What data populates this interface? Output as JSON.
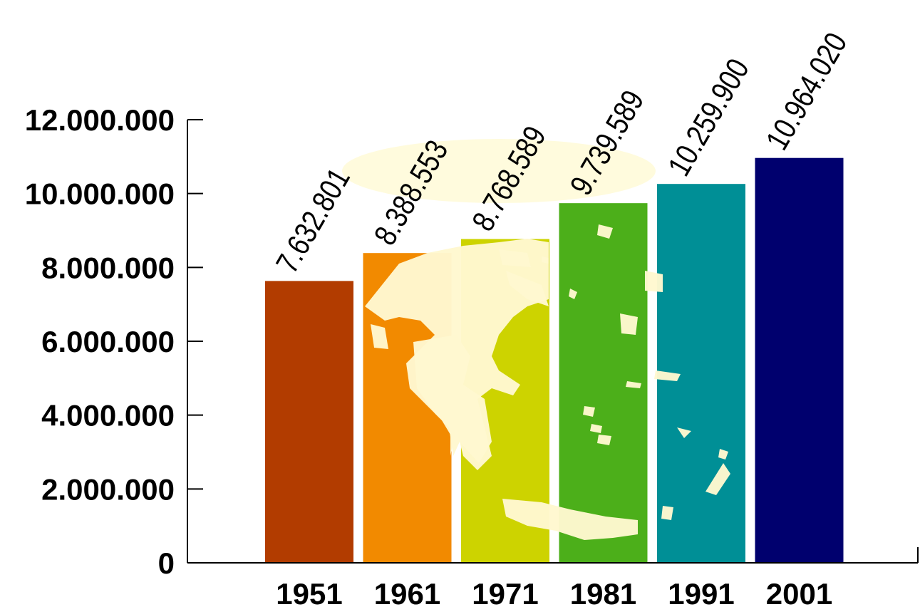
{
  "chart_data": {
    "type": "bar",
    "categories": [
      "1951",
      "1961",
      "1971",
      "1981",
      "1991",
      "2001"
    ],
    "values": [
      7632801,
      8388553,
      8768589,
      9739589,
      10259900,
      10964020
    ],
    "data_labels": [
      "7.632.801",
      "8.388.553",
      "8.768.589",
      "9.739.589",
      "10.259.900",
      "10.964.020"
    ],
    "colors": [
      "#b23c00",
      "#f28a00",
      "#cdd300",
      "#4caf1a",
      "#008f96",
      "#00006e"
    ],
    "ylim": [
      0,
      12000000
    ],
    "yticks": [
      0,
      2000000,
      4000000,
      6000000,
      8000000,
      10000000,
      12000000
    ],
    "ytick_labels": [
      "0",
      "2.000.000",
      "4.000.000",
      "6.000.000",
      "8.000.000",
      "10.000.000",
      "12.000.000"
    ],
    "title": "",
    "xlabel": "",
    "ylabel": "",
    "grid": false,
    "legend": "none",
    "background_image": "map of Greece (light yellow silhouette over bars)"
  }
}
